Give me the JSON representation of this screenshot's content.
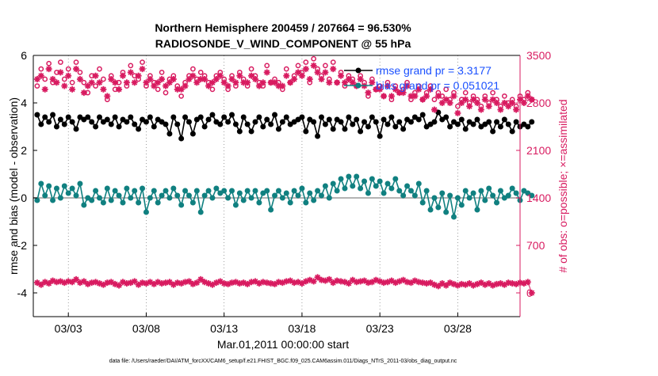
{
  "chart_data": {
    "type": "line",
    "title_line1": "Northern Hemisphere 200459 / 207664 = 96.530%",
    "title_line2": "RADIOSONDE_V_WIND_COMPONENT @ 55 hPa",
    "ylabel_left": "rmse and bias (model - observation)",
    "ylabel_right": "# of obs: o=possible; ×=assimilated",
    "xlabel": "Mar.01,2011 00:00:00 start",
    "footer": "data file: /Users/raeder/DAI/ATM_forcXX/CAM6_setup/f.e21.FHIST_BGC.f09_025.CAM6assim.011/Diags_NTrS_2011-03/obs_diag_output.nc",
    "x_ticks": [
      "03/03",
      "03/08",
      "03/13",
      "03/18",
      "03/23",
      "03/28"
    ],
    "x_tick_days": [
      3,
      8,
      13,
      18,
      23,
      28
    ],
    "xlim_days": [
      0.75,
      32.0
    ],
    "ylim_left": [
      -5,
      6
    ],
    "y_ticks_left": [
      6,
      4,
      2,
      0,
      -2,
      -4
    ],
    "ylim_right": [
      -350,
      3500
    ],
    "y_ticks_right": [
      3500,
      2800,
      2100,
      1400,
      700,
      0
    ],
    "legend": [
      "rmse grand pr = 3.3177",
      "bias grand pr = 0.051021"
    ],
    "colors": {
      "rmse": "#000000",
      "bias": "#108080",
      "obs": "#d81b60",
      "zero_line": "#b3b3b3",
      "legend_text": "#1a50ff"
    },
    "series": [
      {
        "name": "rmse",
        "axis": "left",
        "values": [
          3.5,
          3.1,
          3.4,
          3.2,
          3.5,
          3.0,
          3.3,
          3.1,
          3.4,
          3.2,
          2.9,
          3.4,
          3.3,
          3.4,
          3.2,
          3.0,
          3.4,
          3.2,
          3.3,
          3.1,
          3.4,
          3.0,
          3.3,
          3.2,
          3.4,
          3.1,
          2.9,
          3.3,
          3.2,
          3.4,
          3.0,
          3.3,
          3.2,
          3.1,
          2.7,
          3.4,
          3.1,
          2.5,
          3.4,
          3.2,
          2.7,
          3.3,
          3.4,
          3.0,
          3.3,
          3.5,
          3.2,
          3.1,
          3.4,
          3.2,
          3.5,
          3.1,
          2.8,
          3.4,
          3.1,
          2.8,
          3.2,
          3.4,
          3.0,
          3.3,
          3.1,
          3.5,
          2.9,
          3.2,
          3.4,
          3.1,
          3.2,
          3.3,
          3.4,
          2.8,
          3.3,
          3.2,
          2.6,
          3.4,
          3.1,
          3.3,
          2.9,
          3.3,
          3.2,
          2.9,
          3.4,
          3.1,
          3.3,
          2.8,
          3.2,
          3.0,
          3.4,
          3.2,
          2.6,
          3.3,
          3.1,
          3.4,
          3.0,
          3.2,
          2.9,
          3.3,
          3.2,
          3.4,
          3.3,
          3.5,
          3.0,
          3.1,
          3.2,
          3.6,
          3.3,
          3.4,
          3.0,
          3.2,
          3.1,
          3.3,
          2.9,
          3.2,
          3.1,
          3.3,
          3.0,
          3.1,
          3.2,
          2.8,
          3.2,
          3.0,
          3.3,
          3.1,
          2.8,
          3.2,
          3.0,
          3.1,
          3.0,
          3.2
        ]
      },
      {
        "name": "bias",
        "axis": "left",
        "values": [
          -0.1,
          0.6,
          0.1,
          0.5,
          -0.1,
          0.4,
          0.0,
          0.5,
          0.2,
          0.4,
          0.1,
          0.6,
          -0.3,
          0.0,
          -0.1,
          0.3,
          0.0,
          -0.2,
          0.4,
          -0.1,
          0.3,
          0.1,
          -0.2,
          0.4,
          0.0,
          0.3,
          -0.2,
          0.4,
          -0.6,
          0.0,
          0.3,
          -0.2,
          0.1,
          0.3,
          0.0,
          0.4,
          0.1,
          -0.3,
          0.3,
          0.1,
          -0.2,
          0.3,
          -0.6,
          0.1,
          0.3,
          0.0,
          0.4,
          0.2,
          0.3,
          0.0,
          0.3,
          -0.3,
          0.2,
          -0.1,
          0.3,
          0.0,
          0.3,
          -0.2,
          0.2,
          0.3,
          -0.5,
          0.1,
          0.3,
          0.0,
          0.2,
          -0.2,
          0.3,
          0.1,
          0.4,
          -0.2,
          0.2,
          -0.1,
          0.3,
          0.1,
          0.5,
          0.0,
          0.6,
          0.3,
          0.8,
          0.4,
          0.9,
          0.5,
          0.9,
          0.4,
          0.7,
          0.2,
          0.8,
          0.5,
          0.7,
          0.2,
          0.6,
          0.4,
          0.8,
          0.3,
          0.1,
          0.5,
          0.3,
          0.1,
          0.6,
          -0.2,
          0.3,
          -0.5,
          0.0,
          -0.4,
          0.2,
          -0.6,
          0.1,
          -0.8,
          0.0,
          -0.3,
          0.3,
          0.0,
          0.2,
          -0.5,
          0.3,
          -0.1,
          0.4,
          0.1,
          -0.2,
          0.3,
          0.0,
          0.1,
          0.4,
          0.2,
          -0.1,
          0.3,
          0.2,
          0.1
        ]
      },
      {
        "name": "possible_obs",
        "axis": "right",
        "values": [
          3050,
          3300,
          3150,
          3380,
          3100,
          3250,
          3400,
          3150,
          3300,
          3100,
          3400,
          3250,
          3100,
          2950,
          3200,
          3050,
          3300,
          3150,
          2850,
          3200,
          3000,
          3100,
          3250,
          3050,
          3350,
          3200,
          3150,
          3400,
          3050,
          3200,
          3100,
          3000,
          3250,
          2950,
          3150,
          3200,
          3050,
          2900,
          3100,
          3200,
          3300,
          3150,
          3250,
          3200,
          3100,
          3000,
          3200,
          3250,
          3150,
          3000,
          3200,
          3050,
          3250,
          3150,
          3050,
          3300,
          3200,
          3100,
          3050,
          3350,
          3100,
          3150,
          3100,
          3000,
          3300,
          3100,
          3200,
          3350,
          3250,
          3400,
          3100,
          3450,
          3300,
          3200,
          3350,
          3150,
          3400,
          3100,
          3250,
          3050,
          3200,
          3150,
          3050,
          3200,
          3100,
          2900,
          3150,
          3000,
          3050,
          2900,
          3100,
          2850,
          3050,
          2950,
          3000,
          3100,
          2850,
          2950,
          3050,
          2850,
          2950,
          3050,
          2850,
          2950,
          2900,
          3000,
          2850,
          2950,
          2750,
          2850,
          2950,
          2800,
          2900,
          2850,
          2750,
          2900,
          2800,
          2950,
          2850,
          2750,
          2900,
          2800,
          2850,
          2750,
          2900,
          2850,
          2950,
          2850
        ]
      },
      {
        "name": "assimilated_obs",
        "axis": "right",
        "values": [
          3150,
          3200,
          3000,
          3300,
          3150,
          3100,
          3250,
          3050,
          3200,
          3000,
          3300,
          3150,
          2950,
          3050,
          3100,
          3200,
          3100,
          3000,
          2900,
          3150,
          3100,
          3000,
          3200,
          3100,
          3250,
          3100,
          3200,
          3300,
          3100,
          3150,
          3050,
          3100,
          3150,
          3050,
          3100,
          3150,
          3000,
          3000,
          3050,
          3150,
          3200,
          3100,
          3150,
          3150,
          3050,
          3100,
          3150,
          3200,
          3100,
          3050,
          3150,
          3100,
          3200,
          3100,
          3100,
          3200,
          3150,
          3050,
          3100,
          3250,
          3100,
          3100,
          3050,
          3050,
          3200,
          3100,
          3150,
          3250,
          3200,
          3300,
          3150,
          3350,
          3250,
          3150,
          3250,
          3100,
          3300,
          3100,
          3200,
          3100,
          3150,
          3100,
          3050,
          3150,
          3050,
          2950,
          3100,
          3000,
          3000,
          2900,
          3050,
          2900,
          3000,
          2950,
          2950,
          3050,
          2900,
          2900,
          3000,
          2850,
          2900,
          3000,
          2700,
          2900,
          2800,
          2850,
          2800,
          2900,
          2650,
          2800,
          2850,
          2750,
          2850,
          2800,
          2700,
          2850,
          2750,
          2850,
          2800,
          2700,
          2800,
          2750,
          2800,
          2700,
          2850,
          2800,
          2900,
          2850
        ]
      },
      {
        "name": "obs_count_bottom",
        "axis": "right",
        "values": [
          150,
          120,
          160,
          140,
          180,
          160,
          170,
          150,
          170,
          160,
          200,
          150,
          170,
          130,
          150,
          160,
          140,
          120,
          150,
          160,
          130,
          110,
          160,
          140,
          150,
          170,
          120,
          150,
          140,
          160,
          130,
          160,
          140,
          150,
          160,
          120,
          150,
          140,
          160,
          170,
          130,
          150,
          200,
          160,
          140,
          120,
          150,
          170,
          140,
          130,
          150,
          160,
          140,
          150,
          130,
          160,
          170,
          140,
          160,
          150,
          140,
          130,
          160,
          150,
          170,
          180,
          150,
          160,
          140,
          170,
          190,
          170,
          230,
          190,
          180,
          200,
          150,
          180,
          170,
          160,
          140,
          190,
          160,
          170,
          180,
          150,
          160,
          190,
          170,
          150,
          160,
          180,
          150,
          170,
          190,
          160,
          150,
          180,
          160,
          150,
          140,
          150,
          120,
          100,
          140,
          110,
          150,
          130,
          110,
          130,
          120,
          140,
          110,
          130,
          150,
          120,
          140,
          110,
          130,
          140,
          120,
          150,
          140,
          130,
          150,
          140,
          160,
          0
        ]
      }
    ]
  }
}
